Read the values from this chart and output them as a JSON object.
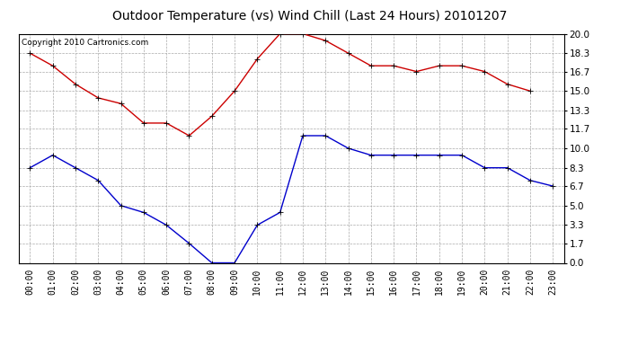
{
  "title": "Outdoor Temperature (vs) Wind Chill (Last 24 Hours) 20101207",
  "copyright": "Copyright 2010 Cartronics.com",
  "x_labels": [
    "00:00",
    "01:00",
    "02:00",
    "03:00",
    "04:00",
    "05:00",
    "06:00",
    "07:00",
    "08:00",
    "09:00",
    "10:00",
    "11:00",
    "12:00",
    "13:00",
    "14:00",
    "15:00",
    "16:00",
    "17:00",
    "18:00",
    "19:00",
    "20:00",
    "21:00",
    "22:00",
    "23:00"
  ],
  "red_data": [
    18.3,
    17.2,
    15.6,
    14.4,
    13.9,
    12.2,
    12.2,
    11.1,
    12.8,
    15.0,
    17.8,
    20.0,
    20.0,
    19.4,
    18.3,
    17.2,
    17.2,
    16.7,
    17.2,
    17.2,
    16.7,
    15.6,
    15.0,
    null
  ],
  "blue_data": [
    8.3,
    9.4,
    8.3,
    7.2,
    5.0,
    4.4,
    3.3,
    1.7,
    0.0,
    0.0,
    3.3,
    4.4,
    11.1,
    11.1,
    10.0,
    9.4,
    9.4,
    9.4,
    9.4,
    9.4,
    8.3,
    8.3,
    7.2,
    6.7
  ],
  "red_color": "#cc0000",
  "blue_color": "#0000cc",
  "ylim": [
    0.0,
    20.0
  ],
  "yticks": [
    0.0,
    1.7,
    3.3,
    5.0,
    6.7,
    8.3,
    10.0,
    11.7,
    13.3,
    15.0,
    16.7,
    18.3,
    20.0
  ],
  "background_color": "#ffffff",
  "grid_color": "#aaaaaa",
  "title_fontsize": 10,
  "copyright_fontsize": 6.5,
  "tick_fontsize": 7,
  "ytick_fontsize": 7.5,
  "linewidth": 1.0,
  "markersize": 4
}
